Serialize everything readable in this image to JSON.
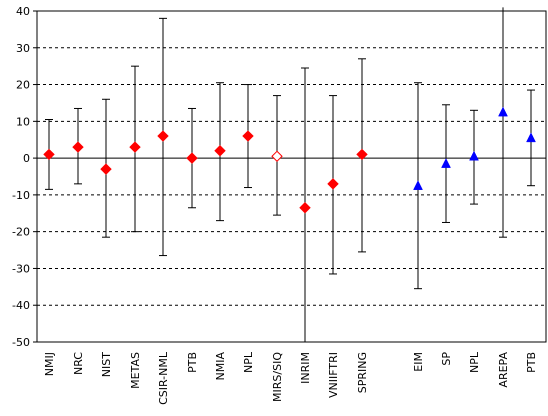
{
  "chart_data": {
    "type": "scatter",
    "title": "",
    "xlabel": "",
    "ylabel": "",
    "ylim": [
      -50,
      40
    ],
    "yticks": [
      -50,
      -40,
      -30,
      -20,
      -10,
      0,
      10,
      20,
      30,
      40
    ],
    "grid": "horizontal dashed",
    "legend": "none",
    "categories": [
      "NMIJ",
      "NRC",
      "NIST",
      "METAS",
      "CSIR-NML",
      "PTB",
      "NMIA",
      "NPL",
      "MIRS/SIQ",
      "INRIM",
      "VNIIFTRI",
      "SPRING",
      "EIM",
      "SP",
      "NPL",
      "AREPA",
      "PTB"
    ],
    "points": [
      {
        "label": "NMIJ",
        "y": 1,
        "low": -8.5,
        "high": 10.5,
        "marker": "diamond",
        "color": "#ff0000"
      },
      {
        "label": "NRC",
        "y": 3,
        "low": -7,
        "high": 13.5,
        "marker": "diamond",
        "color": "#ff0000"
      },
      {
        "label": "NIST",
        "y": -3,
        "low": -21.5,
        "high": 16,
        "marker": "diamond",
        "color": "#ff0000"
      },
      {
        "label": "METAS",
        "y": 3,
        "low": -20,
        "high": 25,
        "marker": "diamond",
        "color": "#ff0000"
      },
      {
        "label": "CSIR-NML",
        "y": 6,
        "low": -26.5,
        "high": 38,
        "marker": "diamond",
        "color": "#ff0000"
      },
      {
        "label": "PTB",
        "y": 0,
        "low": -13.5,
        "high": 13.5,
        "marker": "diamond",
        "color": "#ff0000"
      },
      {
        "label": "NMIA",
        "y": 2,
        "low": -17,
        "high": 20.5,
        "marker": "diamond",
        "color": "#ff0000"
      },
      {
        "label": "NPL",
        "y": 6,
        "low": -8,
        "high": 20,
        "marker": "diamond",
        "color": "#ff0000"
      },
      {
        "label": "MIRS/SIQ",
        "y": 0.5,
        "low": -15.5,
        "high": 17,
        "marker": "diamond-open",
        "color": "#ff0000"
      },
      {
        "label": "INRIM",
        "y": -13.5,
        "low": -50,
        "high": 24.5,
        "marker": "diamond",
        "color": "#ff0000"
      },
      {
        "label": "VNIIFTRI",
        "y": -7,
        "low": -31.5,
        "high": 17,
        "marker": "diamond",
        "color": "#ff0000"
      },
      {
        "label": "SPRING",
        "y": 1,
        "low": -25.5,
        "high": 27,
        "marker": "diamond",
        "color": "#ff0000"
      },
      {
        "label": "EIM",
        "y": -7.5,
        "low": -35.5,
        "high": 20.5,
        "marker": "triangle",
        "color": "#0000ff"
      },
      {
        "label": "SP",
        "y": -1.5,
        "low": -17.5,
        "high": 14.5,
        "marker": "triangle",
        "color": "#0000ff"
      },
      {
        "label": "NPL",
        "y": 0.5,
        "low": -12.5,
        "high": 13,
        "marker": "triangle",
        "color": "#0000ff"
      },
      {
        "label": "AREPA",
        "y": 12.5,
        "low": -21.5,
        "high": 41,
        "marker": "triangle",
        "color": "#0000ff"
      },
      {
        "label": "PTB",
        "y": 5.5,
        "low": -7.5,
        "high": 18.5,
        "marker": "triangle",
        "color": "#0000ff"
      }
    ]
  }
}
